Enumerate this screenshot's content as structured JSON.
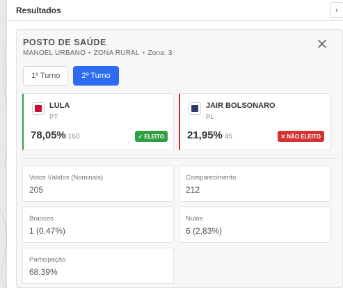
{
  "panel": {
    "title": "Resultados",
    "collapse_icon": "›"
  },
  "location": {
    "name": "POSTO DE SAÚDE",
    "city": "MANOEL URBANO",
    "zone_type": "ZONA RURAL",
    "zone": "Zona: 3",
    "separator": "•"
  },
  "tabs": [
    {
      "label": "1º Turno",
      "active": false
    },
    {
      "label": "2º Turno",
      "active": true
    }
  ],
  "candidates": [
    {
      "name": "LULA",
      "party": "PT",
      "percent": "78,05%",
      "votes": "160",
      "status": "ELEITO",
      "status_icon": "✓",
      "color": "#c8102e",
      "accent": "#2ea043"
    },
    {
      "name": "JAIR BOLSONARO",
      "party": "PL",
      "percent": "21,95%",
      "votes": "45",
      "status": "NÃO ELEITO",
      "status_icon": "✕",
      "color": "#2b3a67",
      "accent": "#cf2a2a"
    }
  ],
  "stats": [
    {
      "label": "Votos Válidos (Nominais)",
      "value": "205"
    },
    {
      "label": "Comparecimento",
      "value": "212"
    },
    {
      "label": "Brancos",
      "value": "1 (0,47%)"
    },
    {
      "label": "Nulos",
      "value": "6 (2,83%)"
    },
    {
      "label": "Participação",
      "value": "68,39%"
    }
  ],
  "colors": {
    "accent": "#2d6cf0",
    "elected": "#2ea043",
    "not_elected": "#d43333"
  }
}
